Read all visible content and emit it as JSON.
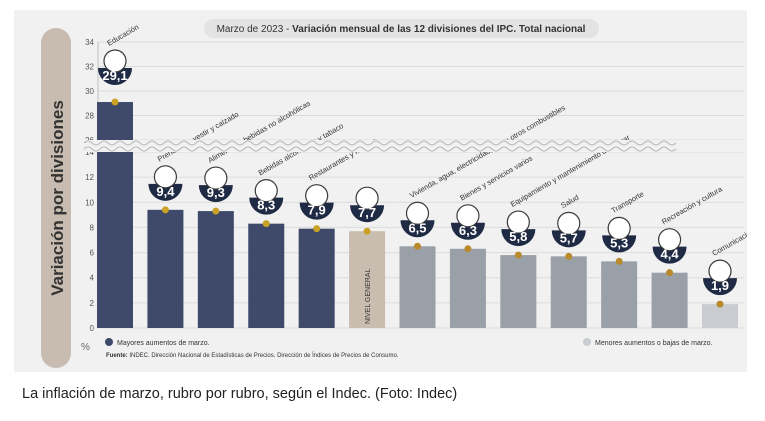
{
  "chart_data": {
    "type": "bar",
    "title": "Marzo de 2023 - Variación mensual de las 12 divisiones del IPC. Total nacional",
    "title_prefix": "Marzo de 2023 - ",
    "title_main": "Variación mensual de las 12 divisiones del IPC. Total nacional",
    "ylabel": "Variación por divisiones",
    "yunit": "%",
    "ylim": [
      0,
      34
    ],
    "axis_break": [
      14,
      26
    ],
    "yticks_lower": [
      0,
      2,
      4,
      6,
      8,
      10,
      12,
      14
    ],
    "yticks_upper": [
      26,
      28,
      30,
      32,
      34
    ],
    "categories": [
      "Educación",
      "Prendas de vestir y calzado",
      "Alimentos y bebidas no alcohólicas",
      "Bebidas alcohólicas y tabaco",
      "Restaurantes y hoteles",
      "NIVEL GENERAL",
      "Vivienda, agua, electricidad, gas y otros combustibles",
      "Bienes y servicios varios",
      "Equipamiento y mantenimiento del hogar",
      "Salud",
      "Transporte",
      "Recreación y cultura",
      "Comunicación"
    ],
    "values": [
      29.1,
      9.4,
      9.3,
      8.3,
      7.9,
      7.7,
      6.5,
      6.3,
      5.8,
      5.7,
      5.3,
      4.4,
      1.9
    ],
    "value_labels": [
      "29,1",
      "9,4",
      "9,3",
      "8,3",
      "7,9",
      "7,7",
      "6,5",
      "6,3",
      "5,8",
      "5,7",
      "5,3",
      "4,4",
      "1,9"
    ],
    "groups": [
      "high",
      "high",
      "high",
      "high",
      "high",
      "general",
      "low",
      "low",
      "low",
      "low",
      "low",
      "low",
      "low"
    ],
    "group_colors": {
      "high": "#3f4a6a",
      "general": "#c9bdb0",
      "low": "#9aa0a8",
      "last": "#c9ccd1"
    },
    "legend": {
      "high": "Mayores aumentos de marzo.",
      "low": "Menores aumentos o bajas de marzo."
    },
    "source_label": "Fuente:",
    "source": "INDEC. Dirección Nacional de Estadísticas de Precios. Dirección de Índices de Precios de Consumo.",
    "general_bar_label": "NIVEL GENERAL"
  },
  "caption": "La inflación de marzo, rubro por rubro, según el Indec. (Foto: Indec)"
}
